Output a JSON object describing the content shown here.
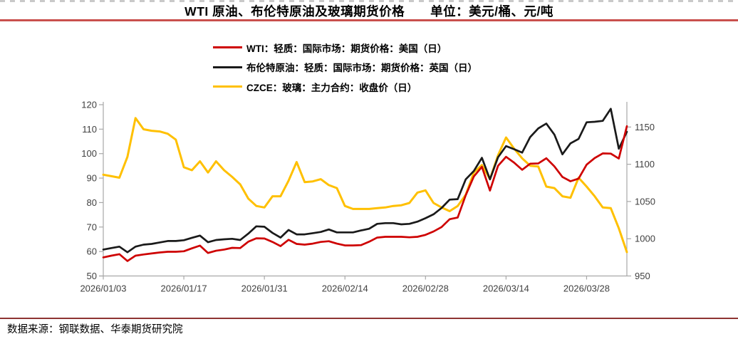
{
  "header": {
    "title": "WTI 原油、布伦特原油及玻璃期货价格　　单位：美元/桶、元/吨"
  },
  "footer": {
    "source": "数据来源：钢联数据、华泰期货研究院"
  },
  "colors": {
    "title_underline": "#c9504d",
    "footer_rule": "#8e3432",
    "top_border": "#c9c9c9",
    "axis": "#a8a8a8",
    "tick_label": "#3f3f3f",
    "wti_red": "#ce0000",
    "brent_black": "#1a1a1a",
    "glass_yellow": "#ffc000"
  },
  "chart_data": {
    "type": "line",
    "title": "WTI 原油、布伦特原油及玻璃期货价格",
    "units": "美元/桶、元/吨",
    "grid": false,
    "legend_position": "top-left",
    "n_points": 66,
    "x_tick_indices": [
      0,
      10,
      20,
      30,
      40,
      50,
      60
    ],
    "x_tick_labels": [
      "2026/01/03",
      "2026/01/17",
      "2026/01/31",
      "2026/02/14",
      "2026/02/28",
      "2026/03/14",
      "2026/03/28"
    ],
    "left_axis": {
      "min": 50,
      "max": 120,
      "ticks": [
        50,
        60,
        70,
        80,
        90,
        100,
        110,
        120
      ],
      "unit": "美元/桶"
    },
    "right_axis": {
      "min": 950,
      "max": 1180,
      "ticks": [
        950,
        1000,
        1050,
        1100,
        1150
      ],
      "unit": "元/吨"
    },
    "series": [
      {
        "name": "WTI：轻质：国际市场：期货价格：美国（日）",
        "color": "#ce0000",
        "axis": "left",
        "values": [
          57.6,
          58.3,
          58.9,
          56.1,
          58.3,
          58.8,
          59.2,
          59.6,
          59.9,
          59.9,
          60.1,
          61.3,
          62.4,
          59.4,
          60.3,
          60.8,
          61.5,
          61.4,
          64.0,
          65.4,
          65.3,
          63.9,
          62.2,
          64.8,
          63.1,
          62.8,
          63.2,
          63.9,
          64.2,
          63.2,
          62.5,
          62.5,
          62.6,
          64.0,
          65.7,
          66.0,
          66.0,
          66.0,
          65.8,
          66.0,
          66.8,
          68.2,
          70.0,
          73.2,
          73.9,
          83.0,
          90.7,
          94.6,
          84.9,
          95.0,
          98.7,
          96.3,
          93.4,
          95.9,
          96.0,
          98.1,
          94.8,
          90.5,
          88.7,
          89.8,
          95.5,
          98.2,
          100.1,
          100.0,
          98.0,
          111.2
        ]
      },
      {
        "name": "布伦特原油：轻质：国际市场：期货价格：英国（日）",
        "color": "#1a1a1a",
        "axis": "left",
        "values": [
          60.8,
          61.4,
          62.0,
          59.7,
          62.0,
          62.8,
          63.1,
          63.7,
          64.3,
          64.3,
          64.6,
          65.6,
          66.5,
          63.8,
          64.7,
          65.0,
          65.2,
          64.7,
          67.3,
          70.3,
          70.1,
          67.6,
          65.7,
          68.8,
          67.0,
          67.0,
          67.5,
          68.0,
          69.0,
          67.8,
          67.8,
          67.8,
          68.6,
          69.3,
          71.3,
          71.6,
          71.6,
          71.1,
          71.3,
          72.2,
          73.6,
          75.2,
          77.8,
          81.2,
          81.4,
          89.5,
          92.9,
          98.3,
          89.5,
          98.5,
          103.1,
          101.8,
          100.4,
          106.8,
          110.3,
          112.3,
          107.8,
          99.7,
          104.2,
          106.0,
          112.8,
          113.0,
          113.4,
          118.3,
          102.0,
          108.9
        ]
      },
      {
        "name": "CZCE：玻璃：主力合约：收盘价（日）",
        "color": "#ffc000",
        "axis": "right",
        "values": [
          1086,
          1084,
          1082,
          1110,
          1162,
          1147,
          1145,
          1144,
          1141,
          1133,
          1096,
          1092,
          1104,
          1089,
          1104,
          1092,
          1083,
          1073,
          1054,
          1044,
          1042,
          1057,
          1057,
          1078,
          1103,
          1076,
          1077,
          1080,
          1072,
          1068,
          1044,
          1040,
          1040,
          1040,
          1041,
          1042,
          1044,
          1045,
          1048,
          1062,
          1065,
          1048,
          1042,
          1037,
          1044,
          1059,
          1089,
          1099,
          1080,
          1112,
          1136,
          1121,
          1108,
          1098,
          1097,
          1070,
          1068,
          1057,
          1055,
          1082,
          1070,
          1057,
          1042,
          1041,
          1014,
          982
        ]
      }
    ]
  }
}
